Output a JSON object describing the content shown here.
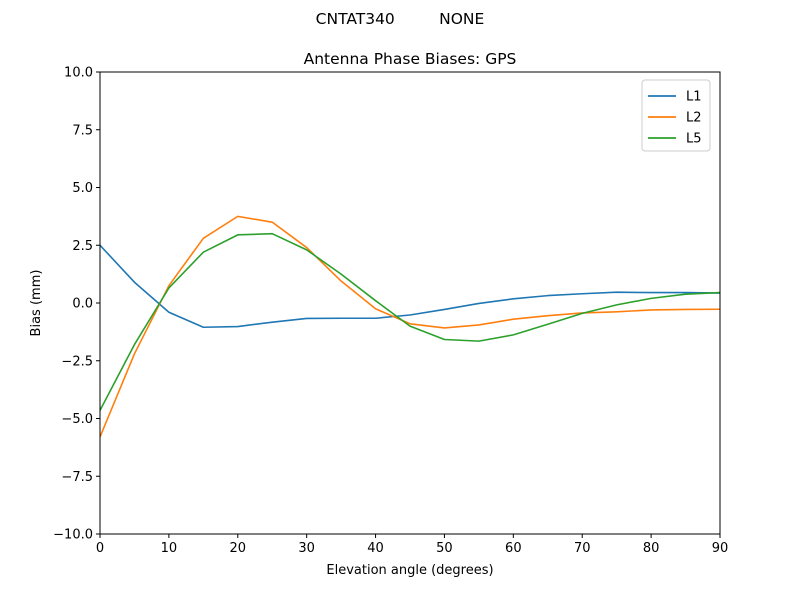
{
  "suptitle": "CNTAT340         NONE",
  "chart_data": {
    "type": "line",
    "title": "Antenna Phase Biases: GPS",
    "xlabel": "Elevation angle (degrees)",
    "ylabel": "Bias (mm)",
    "xlim": [
      0,
      90
    ],
    "ylim": [
      -10,
      10
    ],
    "xticks": [
      0,
      10,
      20,
      30,
      40,
      50,
      60,
      70,
      80,
      90
    ],
    "yticks": [
      -10.0,
      -7.5,
      -5.0,
      -2.5,
      0.0,
      2.5,
      5.0,
      7.5,
      10.0
    ],
    "xtick_labels": [
      "0",
      "10",
      "20",
      "30",
      "40",
      "50",
      "60",
      "70",
      "80",
      "90"
    ],
    "ytick_labels": [
      "−10.0",
      "−7.5",
      "−5.0",
      "−2.5",
      "0.0",
      "2.5",
      "5.0",
      "7.5",
      "10.0"
    ],
    "grid": false,
    "legend_position": "top-right",
    "x": [
      0,
      5,
      10,
      15,
      20,
      25,
      30,
      35,
      40,
      45,
      50,
      55,
      60,
      65,
      70,
      75,
      80,
      85,
      90
    ],
    "series": [
      {
        "name": "L1",
        "color": "#1f77b4",
        "values": [
          2.5,
          0.9,
          -0.4,
          -1.05,
          -1.02,
          -0.83,
          -0.67,
          -0.66,
          -0.66,
          -0.52,
          -0.28,
          -0.02,
          0.18,
          0.32,
          0.4,
          0.47,
          0.45,
          0.45,
          0.43
        ]
      },
      {
        "name": "L2",
        "color": "#ff7f0e",
        "values": [
          -5.8,
          -2.2,
          0.75,
          2.8,
          3.75,
          3.5,
          2.4,
          0.95,
          -0.25,
          -0.9,
          -1.08,
          -0.95,
          -0.7,
          -0.55,
          -0.43,
          -0.38,
          -0.3,
          -0.28,
          -0.27
        ]
      },
      {
        "name": "L5",
        "color": "#2ca02c",
        "values": [
          -4.65,
          -1.8,
          0.65,
          2.2,
          2.95,
          3.0,
          2.3,
          1.25,
          0.1,
          -1.0,
          -1.58,
          -1.65,
          -1.38,
          -0.92,
          -0.45,
          -0.08,
          0.2,
          0.38,
          0.45
        ]
      }
    ]
  }
}
